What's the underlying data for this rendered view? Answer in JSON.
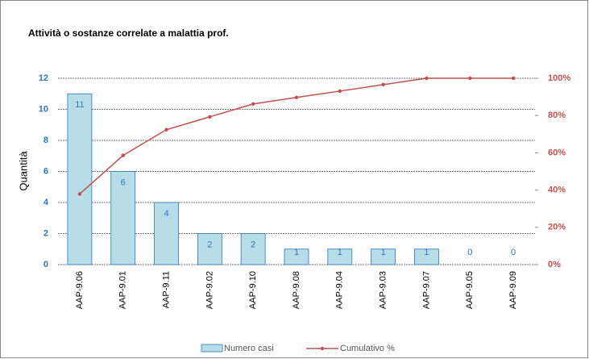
{
  "chart_data": {
    "type": "bar",
    "title": "Attività o sostanze correlate a malattia prof.",
    "y_label": "Quantità",
    "categories": [
      "AAP-9.06",
      "AAP-9.01",
      "AAP-9.11",
      "AAP-9.02",
      "AAP-9.10",
      "AAP-9.08",
      "AAP-9.04",
      "AAP-9.03",
      "AAP-9.07",
      "AAP-9.05",
      "AAP-9.09"
    ],
    "series": [
      {
        "name": "Numero casi",
        "type": "bar",
        "color": "#b7dee8",
        "values": [
          11,
          6,
          4,
          2,
          2,
          1,
          1,
          1,
          1,
          0,
          0
        ]
      },
      {
        "name": "Cumulativo %",
        "type": "line",
        "axis": "y2",
        "color": "#c0504d",
        "values": [
          37.9,
          58.6,
          72.4,
          79.3,
          86.2,
          89.7,
          93.1,
          96.6,
          100,
          100,
          100
        ]
      }
    ],
    "ylim": [
      0,
      12
    ],
    "yticks": [
      0,
      2,
      4,
      6,
      8,
      10,
      12
    ],
    "y2lim": [
      0,
      100
    ],
    "y2ticks": [
      {
        "value": 0,
        "label": "0%"
      },
      {
        "value": 20,
        "label": "20%"
      },
      {
        "value": 40,
        "label": "40%"
      },
      {
        "value": 60,
        "label": "60%"
      },
      {
        "value": 80,
        "label": "80%"
      },
      {
        "value": 100,
        "label": "100%"
      }
    ],
    "grid": true,
    "legend": "bottom"
  }
}
